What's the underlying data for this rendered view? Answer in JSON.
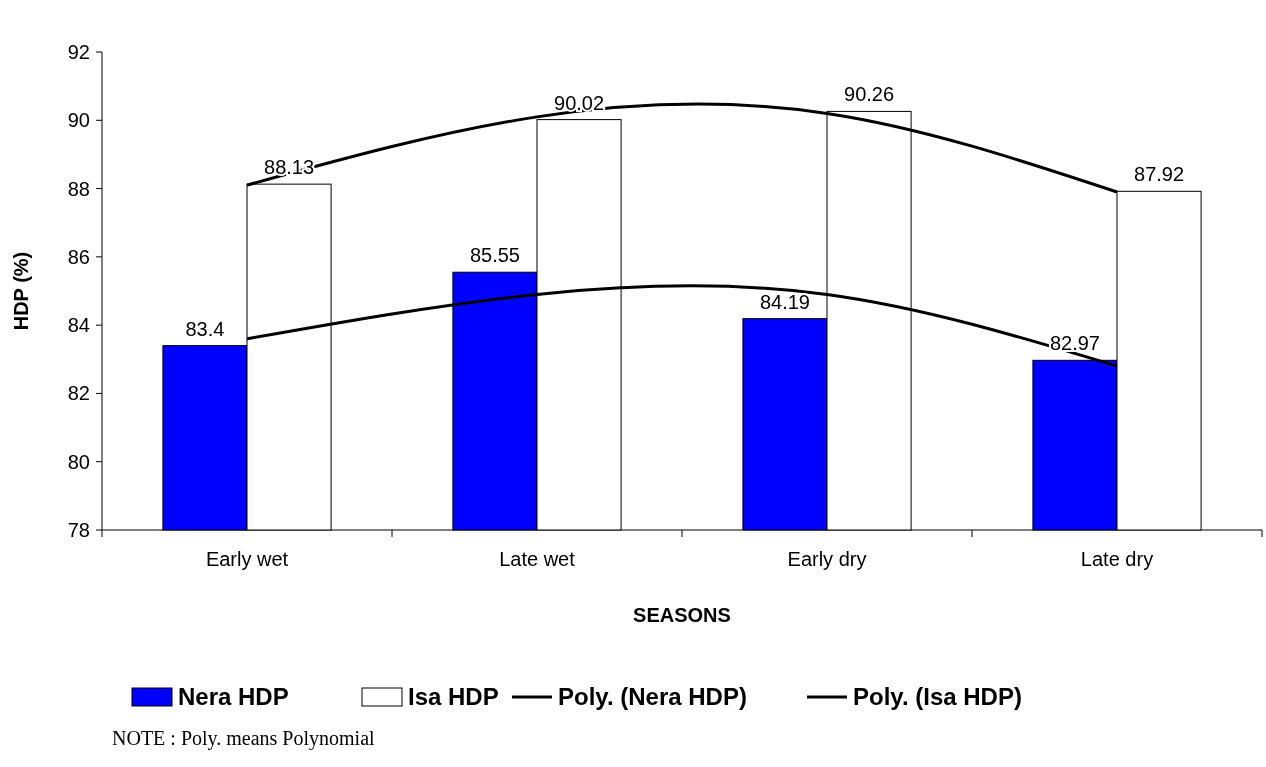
{
  "chart_data": {
    "type": "bar",
    "xlabel": "SEASONS",
    "ylabel": "HDP (%)",
    "categories": [
      "Early wet",
      "Late wet",
      "Early dry",
      "Late dry"
    ],
    "series": [
      {
        "name": "Nera HDP",
        "color": "#0000ff",
        "values": [
          83.4,
          85.55,
          84.19,
          82.97
        ],
        "value_labels": [
          "83.4",
          "85.55",
          "84.19",
          "82.97"
        ]
      },
      {
        "name": "Isa HDP",
        "color": "#ffffff",
        "values": [
          88.13,
          90.02,
          90.26,
          87.92
        ],
        "value_labels": [
          "88.13",
          "90.02",
          "90.26",
          "87.92"
        ]
      },
      {
        "name": "Poly. (Nera HDP)",
        "type": "line",
        "color": "#000000",
        "values": [
          83.6,
          84.9,
          84.9,
          82.8
        ]
      },
      {
        "name": "Poly. (Isa HDP)",
        "type": "line",
        "color": "#000000",
        "values": [
          88.1,
          90.1,
          90.2,
          87.9
        ]
      }
    ],
    "ylim": [
      78,
      92
    ],
    "yticks": [
      78,
      80,
      82,
      84,
      86,
      88,
      90,
      92
    ],
    "grid": false,
    "legend": "bottom",
    "annotations": [
      "NOTE : Poly. means Polynomial"
    ]
  }
}
